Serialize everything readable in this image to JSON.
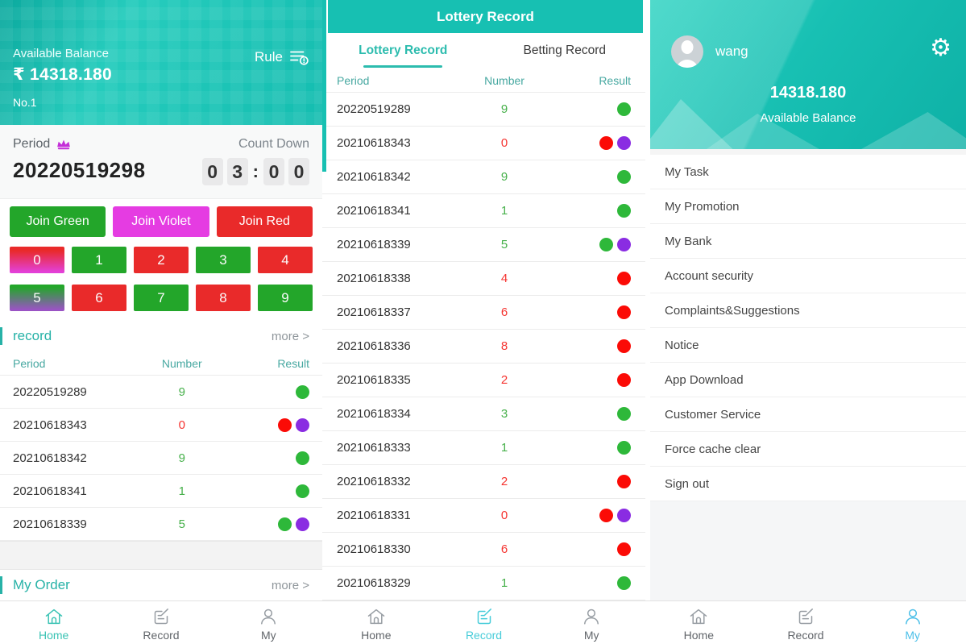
{
  "colors": {
    "teal": "#17c0b2",
    "dot_green": "#2eb83a",
    "dot_red": "#fb0b06",
    "dot_violet": "#8a2ce2"
  },
  "home": {
    "balance_label": "Available Balance",
    "balance_value": "₹ 14318.180",
    "account_no": "No.1",
    "rule_label": "Rule",
    "period_label": "Period",
    "period_value": "20220519298",
    "countdown_label": "Count Down",
    "countdown_digits": [
      "0",
      "3",
      "0",
      "0"
    ],
    "join_buttons": [
      {
        "label": "Join Green",
        "style": "green"
      },
      {
        "label": "Join Violet",
        "style": "violet"
      },
      {
        "label": "Join Red",
        "style": "red"
      }
    ],
    "number_buttons": [
      {
        "label": "0",
        "style": "red-violet"
      },
      {
        "label": "1",
        "style": "green"
      },
      {
        "label": "2",
        "style": "red"
      },
      {
        "label": "3",
        "style": "green"
      },
      {
        "label": "4",
        "style": "red"
      },
      {
        "label": "5",
        "style": "green-violet"
      },
      {
        "label": "6",
        "style": "red"
      },
      {
        "label": "7",
        "style": "green"
      },
      {
        "label": "8",
        "style": "red"
      },
      {
        "label": "9",
        "style": "green"
      }
    ],
    "record_title": "record",
    "more_label": "more >",
    "table_headers": [
      "Period",
      "Number",
      "Result"
    ],
    "rows": [
      {
        "period": "20220519289",
        "number": "9",
        "number_color": "green",
        "dots": [
          "green"
        ]
      },
      {
        "period": "20210618343",
        "number": "0",
        "number_color": "red",
        "dots": [
          "red",
          "violet"
        ]
      },
      {
        "period": "20210618342",
        "number": "9",
        "number_color": "green",
        "dots": [
          "green"
        ]
      },
      {
        "period": "20210618341",
        "number": "1",
        "number_color": "green",
        "dots": [
          "green"
        ]
      },
      {
        "period": "20210618339",
        "number": "5",
        "number_color": "green",
        "dots": [
          "green",
          "violet"
        ]
      }
    ],
    "my_order_title": "My Order",
    "active_nav": 0,
    "active_color": "#3bc3b4"
  },
  "record_screen": {
    "title": "Lottery Record",
    "tabs": [
      "Lottery Record",
      "Betting Record"
    ],
    "active_tab_index": 0,
    "table_headers": [
      "Period",
      "Number",
      "Result"
    ],
    "rows": [
      {
        "period": "20220519289",
        "number": "9",
        "number_color": "green",
        "dots": [
          "green"
        ]
      },
      {
        "period": "20210618343",
        "number": "0",
        "number_color": "red",
        "dots": [
          "red",
          "violet"
        ]
      },
      {
        "period": "20210618342",
        "number": "9",
        "number_color": "green",
        "dots": [
          "green"
        ]
      },
      {
        "period": "20210618341",
        "number": "1",
        "number_color": "green",
        "dots": [
          "green"
        ]
      },
      {
        "period": "20210618339",
        "number": "5",
        "number_color": "green",
        "dots": [
          "green",
          "violet"
        ]
      },
      {
        "period": "20210618338",
        "number": "4",
        "number_color": "red",
        "dots": [
          "red"
        ]
      },
      {
        "period": "20210618337",
        "number": "6",
        "number_color": "red",
        "dots": [
          "red"
        ]
      },
      {
        "period": "20210618336",
        "number": "8",
        "number_color": "red",
        "dots": [
          "red"
        ]
      },
      {
        "period": "20210618335",
        "number": "2",
        "number_color": "red",
        "dots": [
          "red"
        ]
      },
      {
        "period": "20210618334",
        "number": "3",
        "number_color": "green",
        "dots": [
          "green"
        ]
      },
      {
        "period": "20210618333",
        "number": "1",
        "number_color": "green",
        "dots": [
          "green"
        ]
      },
      {
        "period": "20210618332",
        "number": "2",
        "number_color": "red",
        "dots": [
          "red"
        ]
      },
      {
        "period": "20210618331",
        "number": "0",
        "number_color": "red",
        "dots": [
          "red",
          "violet"
        ]
      },
      {
        "period": "20210618330",
        "number": "6",
        "number_color": "red",
        "dots": [
          "red"
        ]
      },
      {
        "period": "20210618329",
        "number": "1",
        "number_color": "green",
        "dots": [
          "green"
        ]
      }
    ],
    "active_nav": 1,
    "active_color": "#47ccd9"
  },
  "my_screen": {
    "username": "wang",
    "balance_value": "14318.180",
    "balance_label": "Available Balance",
    "gear_glyph": "⚙",
    "menu_items": [
      "My Task",
      "My Promotion",
      "My Bank",
      "Account security",
      "Complaints&Suggestions",
      "Notice",
      "App Download",
      "Customer Service",
      "Force cache clear",
      "Sign out"
    ],
    "active_nav": 2,
    "active_color": "#4bbfe8"
  },
  "nav": {
    "items": [
      {
        "label": "Home",
        "icon": "home-icon"
      },
      {
        "label": "Record",
        "icon": "record-icon"
      },
      {
        "label": "My",
        "icon": "person-icon"
      }
    ]
  }
}
